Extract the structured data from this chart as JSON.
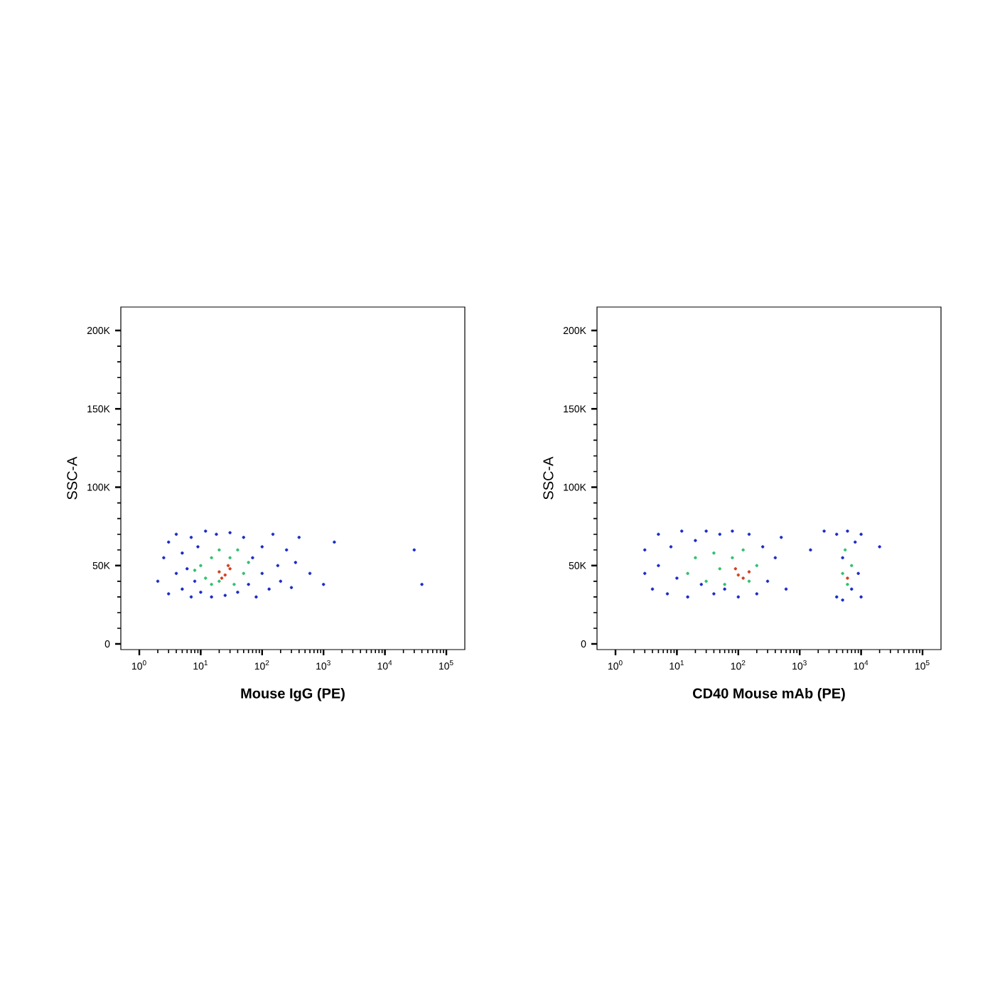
{
  "chart_data": [
    {
      "type": "scatter",
      "xlabel": "Mouse IgG (PE)",
      "ylabel": "SSC-A",
      "log": "x",
      "xlim": [
        0.5,
        200000
      ],
      "ylim": [
        -3600,
        215000
      ],
      "xticks": [
        {
          "value": 1,
          "label": "10$^{0}$"
        },
        {
          "value": 10,
          "label": "10$^{1}$"
        },
        {
          "value": 100,
          "label": "10$^{2}$"
        },
        {
          "value": 1000,
          "label": "10$^{3}$"
        },
        {
          "value": 10000,
          "label": "10$^{4}$"
        },
        {
          "value": 100000,
          "label": "10$^{5}$"
        }
      ],
      "yticks": [
        0,
        {
          "value": 50000,
          "label": "50K"
        },
        {
          "value": 100000,
          "label": "100K"
        },
        {
          "value": 150000,
          "label": "150K"
        },
        {
          "value": 200000,
          "label": "200K"
        }
      ],
      "series": [
        {
          "color": "#1a2bc8",
          "x": [
            2,
            2.5,
            3,
            3,
            4,
            4,
            5,
            5,
            6,
            7,
            7,
            8,
            9,
            10,
            12,
            15,
            18,
            25,
            30,
            40,
            50,
            60,
            70,
            80,
            100,
            100,
            130,
            150,
            180,
            200,
            250,
            300,
            350,
            400,
            600,
            1000,
            1500,
            30000,
            40000
          ],
          "values": [
            40000,
            55000,
            32000,
            65000,
            45000,
            70000,
            35000,
            58000,
            48000,
            30000,
            68000,
            40000,
            62000,
            33000,
            72000,
            30000,
            70000,
            31000,
            71000,
            33000,
            68000,
            38000,
            55000,
            30000,
            62000,
            45000,
            35000,
            70000,
            50000,
            40000,
            60000,
            36000,
            52000,
            68000,
            45000,
            38000,
            65000,
            60000,
            38000
          ]
        },
        {
          "color": "#30c070",
          "x": [
            10,
            12,
            15,
            15,
            20,
            20,
            30,
            35,
            40,
            50,
            8,
            60
          ],
          "values": [
            50000,
            42000,
            55000,
            38000,
            60000,
            40000,
            55000,
            38000,
            60000,
            45000,
            47000,
            52000
          ]
        },
        {
          "color": "#d04020",
          "x": [
            20,
            25,
            30,
            22,
            28
          ],
          "values": [
            46000,
            44000,
            48000,
            42000,
            50000
          ]
        }
      ]
    },
    {
      "type": "scatter",
      "xlabel": "CD40 Mouse mAb (PE)",
      "ylabel": "SSC-A",
      "log": "x",
      "xlim": [
        0.5,
        200000
      ],
      "ylim": [
        -3600,
        215000
      ],
      "xticks": [
        {
          "value": 1,
          "label": "10$^{0}$"
        },
        {
          "value": 10,
          "label": "10$^{1}$"
        },
        {
          "value": 100,
          "label": "10$^{2}$"
        },
        {
          "value": 1000,
          "label": "10$^{3}$"
        },
        {
          "value": 10000,
          "label": "10$^{4}$"
        },
        {
          "value": 100000,
          "label": "10$^{5}$"
        }
      ],
      "yticks": [
        0,
        {
          "value": 50000,
          "label": "50K"
        },
        {
          "value": 100000,
          "label": "100K"
        },
        {
          "value": 150000,
          "label": "150K"
        },
        {
          "value": 200000,
          "label": "200K"
        }
      ],
      "series": [
        {
          "color": "#1a2bc8",
          "x": [
            3,
            3,
            4,
            5,
            5,
            7,
            8,
            10,
            12,
            15,
            20,
            25,
            30,
            40,
            50,
            60,
            80,
            100,
            150,
            200,
            250,
            300,
            400,
            500,
            600,
            1500,
            2500,
            4000,
            4000,
            5000,
            5000,
            6000,
            7000,
            8000,
            9000,
            10000,
            10000,
            20000
          ],
          "values": [
            45000,
            60000,
            35000,
            70000,
            50000,
            32000,
            62000,
            42000,
            72000,
            30000,
            66000,
            38000,
            72000,
            32000,
            70000,
            35000,
            72000,
            30000,
            70000,
            32000,
            62000,
            40000,
            55000,
            68000,
            35000,
            60000,
            72000,
            30000,
            70000,
            55000,
            28000,
            72000,
            35000,
            65000,
            45000,
            30000,
            70000,
            62000
          ]
        },
        {
          "color": "#30c070",
          "x": [
            15,
            20,
            30,
            40,
            50,
            60,
            80,
            120,
            150,
            200,
            5000,
            6000,
            7000,
            5500
          ],
          "values": [
            45000,
            55000,
            40000,
            58000,
            48000,
            38000,
            55000,
            60000,
            40000,
            50000,
            45000,
            38000,
            50000,
            60000
          ]
        },
        {
          "color": "#d04020",
          "x": [
            100,
            120,
            150,
            90,
            6000
          ],
          "values": [
            44000,
            42000,
            46000,
            48000,
            42000
          ]
        }
      ]
    }
  ]
}
